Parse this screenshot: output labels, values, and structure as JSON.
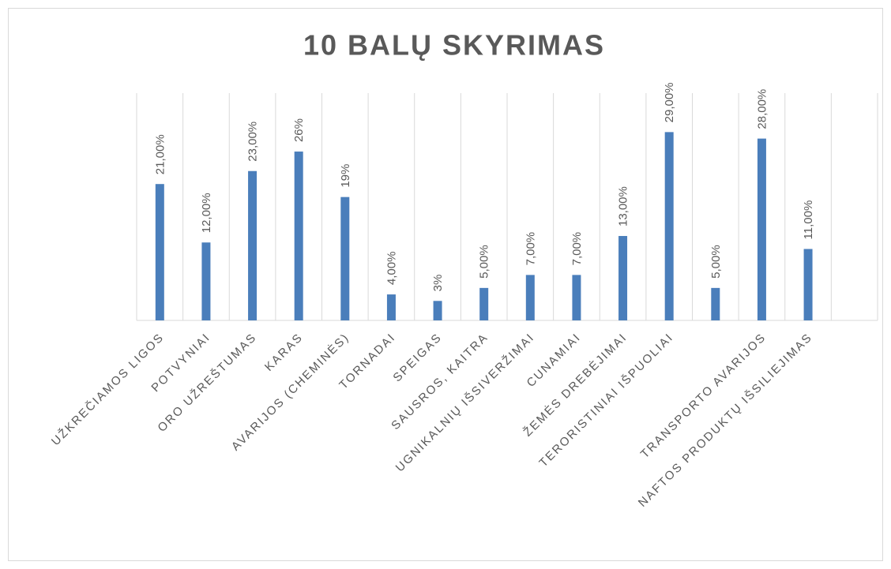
{
  "chart_data": {
    "type": "bar",
    "title": "10 BALŲ SKYRIMAS",
    "categories": [
      "UŽKREČIAMOS LIGOS",
      "POTVYNIAI",
      "ORO UŽREŠTUMAS",
      "KARAS",
      "AVARIJOS (CHEMINĖS)",
      "TORNADAI",
      "SPEIGAS",
      "SAUSROS, KAITRA",
      "UGNIKALNIŲ IŠSIVERŽIMAI",
      "CUNAMIAI",
      "ŽEMĖS DREBĖJIMAI",
      "TERORISTINIAI IŠPUOLIAI",
      null,
      "TRANSPORTO AVARIJOS",
      "NAFTOS PRODUKTŲ IŠSILIEJIMAS",
      null
    ],
    "values": [
      21,
      12,
      23,
      26,
      19,
      4,
      3,
      5,
      7,
      7,
      13,
      29,
      5,
      28,
      11,
      null
    ],
    "value_labels": [
      "21,00%",
      "12,00%",
      "23,00%",
      "26%",
      "19%",
      "4,00%",
      "3%",
      "5,00%",
      "7,00%",
      "7,00%",
      "13,00%",
      "29,00%",
      "5,00%",
      "28,00%",
      "11,00%",
      null
    ],
    "color": "#4a7ebb",
    "ylim": [
      0,
      35
    ],
    "grid": true
  }
}
